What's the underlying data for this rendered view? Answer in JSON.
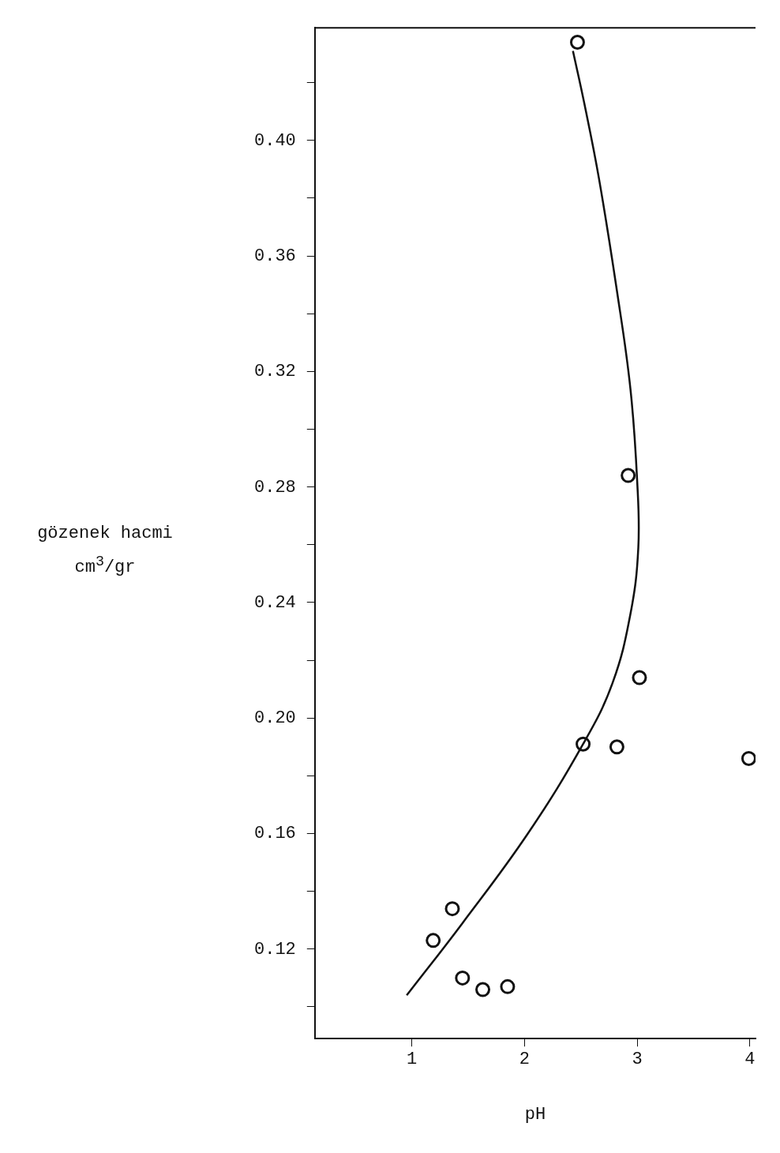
{
  "chart_data": {
    "type": "scatter",
    "xlabel": "pH",
    "ylabel": "gözenek hacmi cm$^{3}$/gr",
    "xlim": [
      0.14,
      4.05
    ],
    "ylim": [
      0.089,
      0.439
    ],
    "xticks": [
      1,
      2,
      3,
      4
    ],
    "yticks": [
      {
        "value": 0.1,
        "label": null
      },
      0.12,
      {
        "value": 0.14,
        "label": null
      },
      0.16,
      {
        "value": 0.18,
        "label": null
      },
      {
        "value": 0.2,
        "label": "0.20"
      },
      {
        "value": 0.22,
        "label": null
      },
      0.24,
      {
        "value": 0.26,
        "label": null
      },
      0.28,
      {
        "value": 0.3,
        "label": null
      },
      0.32,
      {
        "value": 0.34,
        "label": null
      },
      0.36,
      {
        "value": 0.38,
        "label": null
      },
      {
        "value": 0.4,
        "label": "0.40"
      },
      {
        "value": 0.42,
        "label": null
      }
    ],
    "grid": false,
    "legend": false,
    "series": [
      {
        "color": "#111111",
        "marker": "circle",
        "x": [
          2.47,
          2.92,
          3.02,
          2.52,
          2.82,
          3.99,
          1.36,
          1.19,
          1.45,
          1.63,
          1.85
        ],
        "values": [
          0.434,
          0.284,
          0.214,
          0.191,
          0.19,
          0.186,
          0.134,
          0.123,
          0.11,
          0.106,
          0.107
        ]
      },
      {
        "type": "line",
        "color": "#111111",
        "marker": "none",
        "line_style": "solid",
        "x": [
          0.955,
          1.45,
          2.03,
          2.52,
          2.78,
          2.94,
          3.01,
          3.0,
          2.94,
          2.82,
          2.66,
          2.53,
          2.43
        ],
        "values": [
          0.104,
          0.129,
          0.16,
          0.191,
          0.212,
          0.236,
          0.259,
          0.282,
          0.314,
          0.348,
          0.387,
          0.413,
          0.431
        ]
      }
    ]
  }
}
